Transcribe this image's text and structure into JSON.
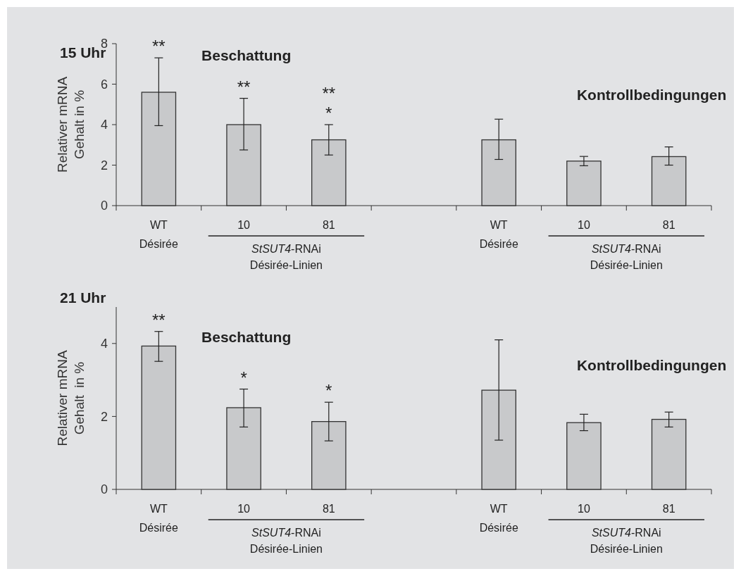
{
  "chart_data": [
    {
      "type": "bar",
      "title": "15 Uhr",
      "ylabel": "Relativer mRNA\nGehalt in %",
      "categories": [
        "WT\nDésirée",
        "10",
        "81",
        null,
        "WT\nDésirée",
        "10",
        "81"
      ],
      "values": [
        5.6,
        4.0,
        3.25,
        null,
        3.25,
        2.2,
        2.42
      ],
      "errors": [
        [
          3.95,
          7.3
        ],
        [
          2.75,
          5.3
        ],
        [
          2.5,
          4.0
        ],
        null,
        [
          2.28,
          4.27
        ],
        [
          1.97,
          2.43
        ],
        [
          2.0,
          2.9
        ]
      ],
      "color": "#c8c9cb",
      "ylim": [
        0,
        8
      ],
      "yticks": [
        0,
        2,
        4,
        6,
        8
      ],
      "annotations": [
        "Beschattung",
        "Kontrollbedingungen",
        "StSUT4-RNAi\nDésirée-Linien",
        "StSUT4-RNAi\nDésirée-Linien",
        {
          "text": "**",
          "x": "WT\nDésirée",
          "y": 7.3
        },
        {
          "text": "**",
          "x": "10",
          "y": 5.3
        },
        {
          "text": "**\n*",
          "x": "81",
          "y": 4.0
        }
      ]
    },
    {
      "type": "bar",
      "title": "21 Uhr",
      "ylabel": "Relativer mRNA\nGehalt  in %",
      "categories": [
        "WT\nDésirée",
        "10",
        "81",
        null,
        "WT\nDésirée",
        "10",
        "81"
      ],
      "values": [
        3.93,
        2.24,
        1.86,
        null,
        2.72,
        1.83,
        1.92
      ],
      "errors": [
        [
          3.51,
          4.33
        ],
        [
          1.71,
          2.75
        ],
        [
          1.33,
          2.39
        ],
        null,
        [
          1.35,
          4.1
        ],
        [
          1.61,
          2.06
        ],
        [
          1.71,
          2.12
        ]
      ],
      "color": "#c8c9cb",
      "ylim": [
        0,
        5
      ],
      "yticks": [
        0,
        2,
        4
      ],
      "annotations": [
        "Beschattung",
        "Kontrollbedingungen",
        "StSUT4-RNAi\nDésirée-Linien",
        "StSUT4-RNAi\nDésirée-Linien",
        {
          "text": "**",
          "x": "WT\nDésirée",
          "y": 4.33
        },
        {
          "text": "*",
          "x": "10",
          "y": 2.75
        },
        {
          "text": "*",
          "x": "81",
          "y": 2.39
        }
      ]
    }
  ]
}
